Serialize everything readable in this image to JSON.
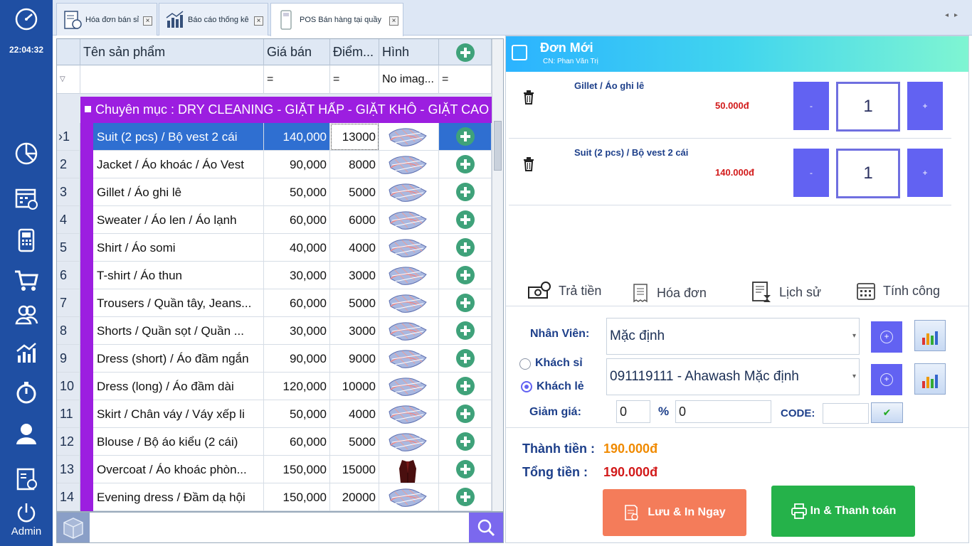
{
  "sidebar": {
    "time": "22:04:32",
    "user": "Admin",
    "icons": [
      "speedometer-icon",
      "pie-chart-icon",
      "calendar-icon",
      "pos-terminal-icon",
      "cart-icon",
      "customers-icon",
      "stats-icon",
      "stopwatch-icon",
      "user-icon",
      "invoice-icon",
      "power-icon"
    ]
  },
  "tabs": [
    {
      "label": "Hóa đơn bán sỉ"
    },
    {
      "label": "Báo cáo thống kê"
    },
    {
      "label": "POS Bán hàng tại quầy"
    }
  ],
  "grid": {
    "columns": [
      "Tên sản phẩm",
      "Giá bán",
      "Điểm...",
      "Hình"
    ],
    "filter": {
      "name": "",
      "price": "=",
      "points": "=",
      "image": "No imag...",
      "add": "="
    },
    "group": "Chuyên mục : DRY CLEANING - GIẶT HẤP - GIẶT KHÔ - GIẶT CAO CẤP",
    "rows": [
      {
        "n": "1",
        "name": "Suit (2 pcs) / Bộ vest 2 cái",
        "price": "140,000",
        "points": "13000",
        "img": "blanket"
      },
      {
        "n": "2",
        "name": "Jacket / Áo khoác / Áo Vest",
        "price": "90,000",
        "points": "8000",
        "img": "blanket"
      },
      {
        "n": "3",
        "name": "Gillet / Áo ghi lê",
        "price": "50,000",
        "points": "5000",
        "img": "blanket"
      },
      {
        "n": "4",
        "name": "Sweater / Áo len / Áo lạnh",
        "price": "60,000",
        "points": "6000",
        "img": "blanket"
      },
      {
        "n": "5",
        "name": "Shirt / Áo somi",
        "price": "40,000",
        "points": "4000",
        "img": "blanket"
      },
      {
        "n": "6",
        "name": "T-shirt / Áo thun",
        "price": "30,000",
        "points": "3000",
        "img": "blanket"
      },
      {
        "n": "7",
        "name": "Trousers / Quần tây, Jeans...",
        "price": "60,000",
        "points": "5000",
        "img": "blanket"
      },
      {
        "n": "8",
        "name": "Shorts / Quần sọt / Quần ...",
        "price": "30,000",
        "points": "3000",
        "img": "blanket"
      },
      {
        "n": "9",
        "name": "Dress (short) / Áo đầm ngắn",
        "price": "90,000",
        "points": "9000",
        "img": "blanket"
      },
      {
        "n": "10",
        "name": "Dress (long) / Áo đầm dài",
        "price": "120,000",
        "points": "10000",
        "img": "blanket"
      },
      {
        "n": "11",
        "name": "Skirt / Chân váy / Váy xếp li",
        "price": "50,000",
        "points": "4000",
        "img": "blanket"
      },
      {
        "n": "12",
        "name": "Blouse / Bộ áo kiểu (2 cái)",
        "price": "60,000",
        "points": "5000",
        "img": "blanket"
      },
      {
        "n": "13",
        "name": "Overcoat / Áo khoác phòn...",
        "price": "150,000",
        "points": "15000",
        "img": "coat"
      },
      {
        "n": "14",
        "name": "Evening dress / Đầm dạ hội",
        "price": "150,000",
        "points": "20000",
        "img": "blanket"
      }
    ]
  },
  "order": {
    "title": "Đơn Mới",
    "branch": "CN: Phan Văn Trị",
    "items": [
      {
        "name": "Gillet / Áo ghi lê",
        "price": "50.000đ",
        "qty": "1"
      },
      {
        "name": "Suit (2 pcs) / Bộ vest 2 cái",
        "price": "140.000đ",
        "qty": "1"
      }
    ],
    "minus_label": "-",
    "plus_label": "+",
    "actions": [
      "Trả tiền",
      "Hóa đơn",
      "Lịch sử",
      "Tính công"
    ]
  },
  "form": {
    "staff_label": "Nhân Viên:",
    "staff_value": "Mặc định",
    "wholesale_label": "Khách sỉ",
    "retail_label": "Khách lẻ",
    "customer_value": "091119111 - Ahawash Mặc định",
    "discount_label": "Giảm giá:",
    "discount_amount": "0",
    "percent_sign": "%",
    "discount_percent": "0",
    "code_label": "CODE:",
    "code_value": ""
  },
  "totals": {
    "subtotal_label": "Thành tiền :",
    "subtotal": "190.000đ",
    "total_label": "Tổng tiền :",
    "total": "190.000đ"
  },
  "buttons": {
    "save_print": "Lưu & In Ngay",
    "print_pay": "In & Thanh toán"
  },
  "colors": {
    "sidebar": "#1f4fa3",
    "group": "#9c1ee0",
    "accent": "#6262f2",
    "save_btn": "#f47c5a",
    "pay_btn": "#25b24a",
    "price_red": "#d21a1a",
    "subtotal_orange": "#f08a00"
  }
}
